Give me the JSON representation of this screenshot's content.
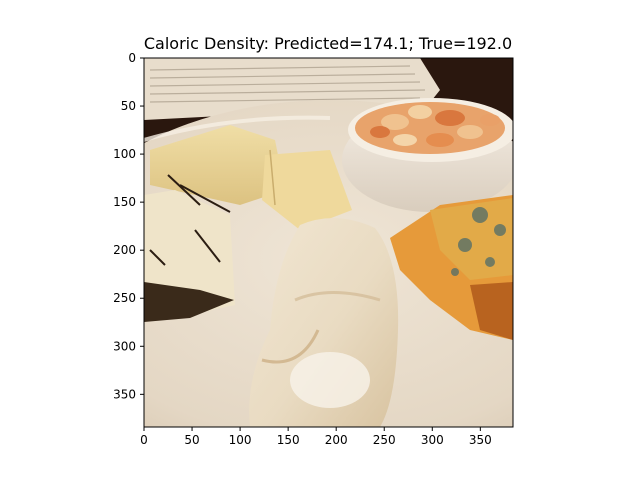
{
  "figure": {
    "title": "Caloric Density: Predicted=174.1; True=192.0",
    "prediction": {
      "predicted": 174.1,
      "true": 192.0
    },
    "axes": {
      "x_ticks": [
        "0",
        "50",
        "100",
        "150",
        "200",
        "250",
        "300",
        "350"
      ],
      "y_ticks": [
        "0",
        "50",
        "100",
        "150",
        "200",
        "250",
        "300",
        "350"
      ],
      "x_range": [
        0,
        384
      ],
      "y_range": [
        0,
        384
      ],
      "y_inverted": true
    },
    "image": {
      "subject": "cheese plate with several cheeses and a bowl of pasta",
      "colors": {
        "plate": "#e7dccd",
        "background": "#2a170e",
        "yellow_cheese": "#ead79a",
        "blue_cheese": "#e69a3a",
        "brie": "#ece0cb",
        "pasta": "#e8a36b"
      }
    }
  }
}
